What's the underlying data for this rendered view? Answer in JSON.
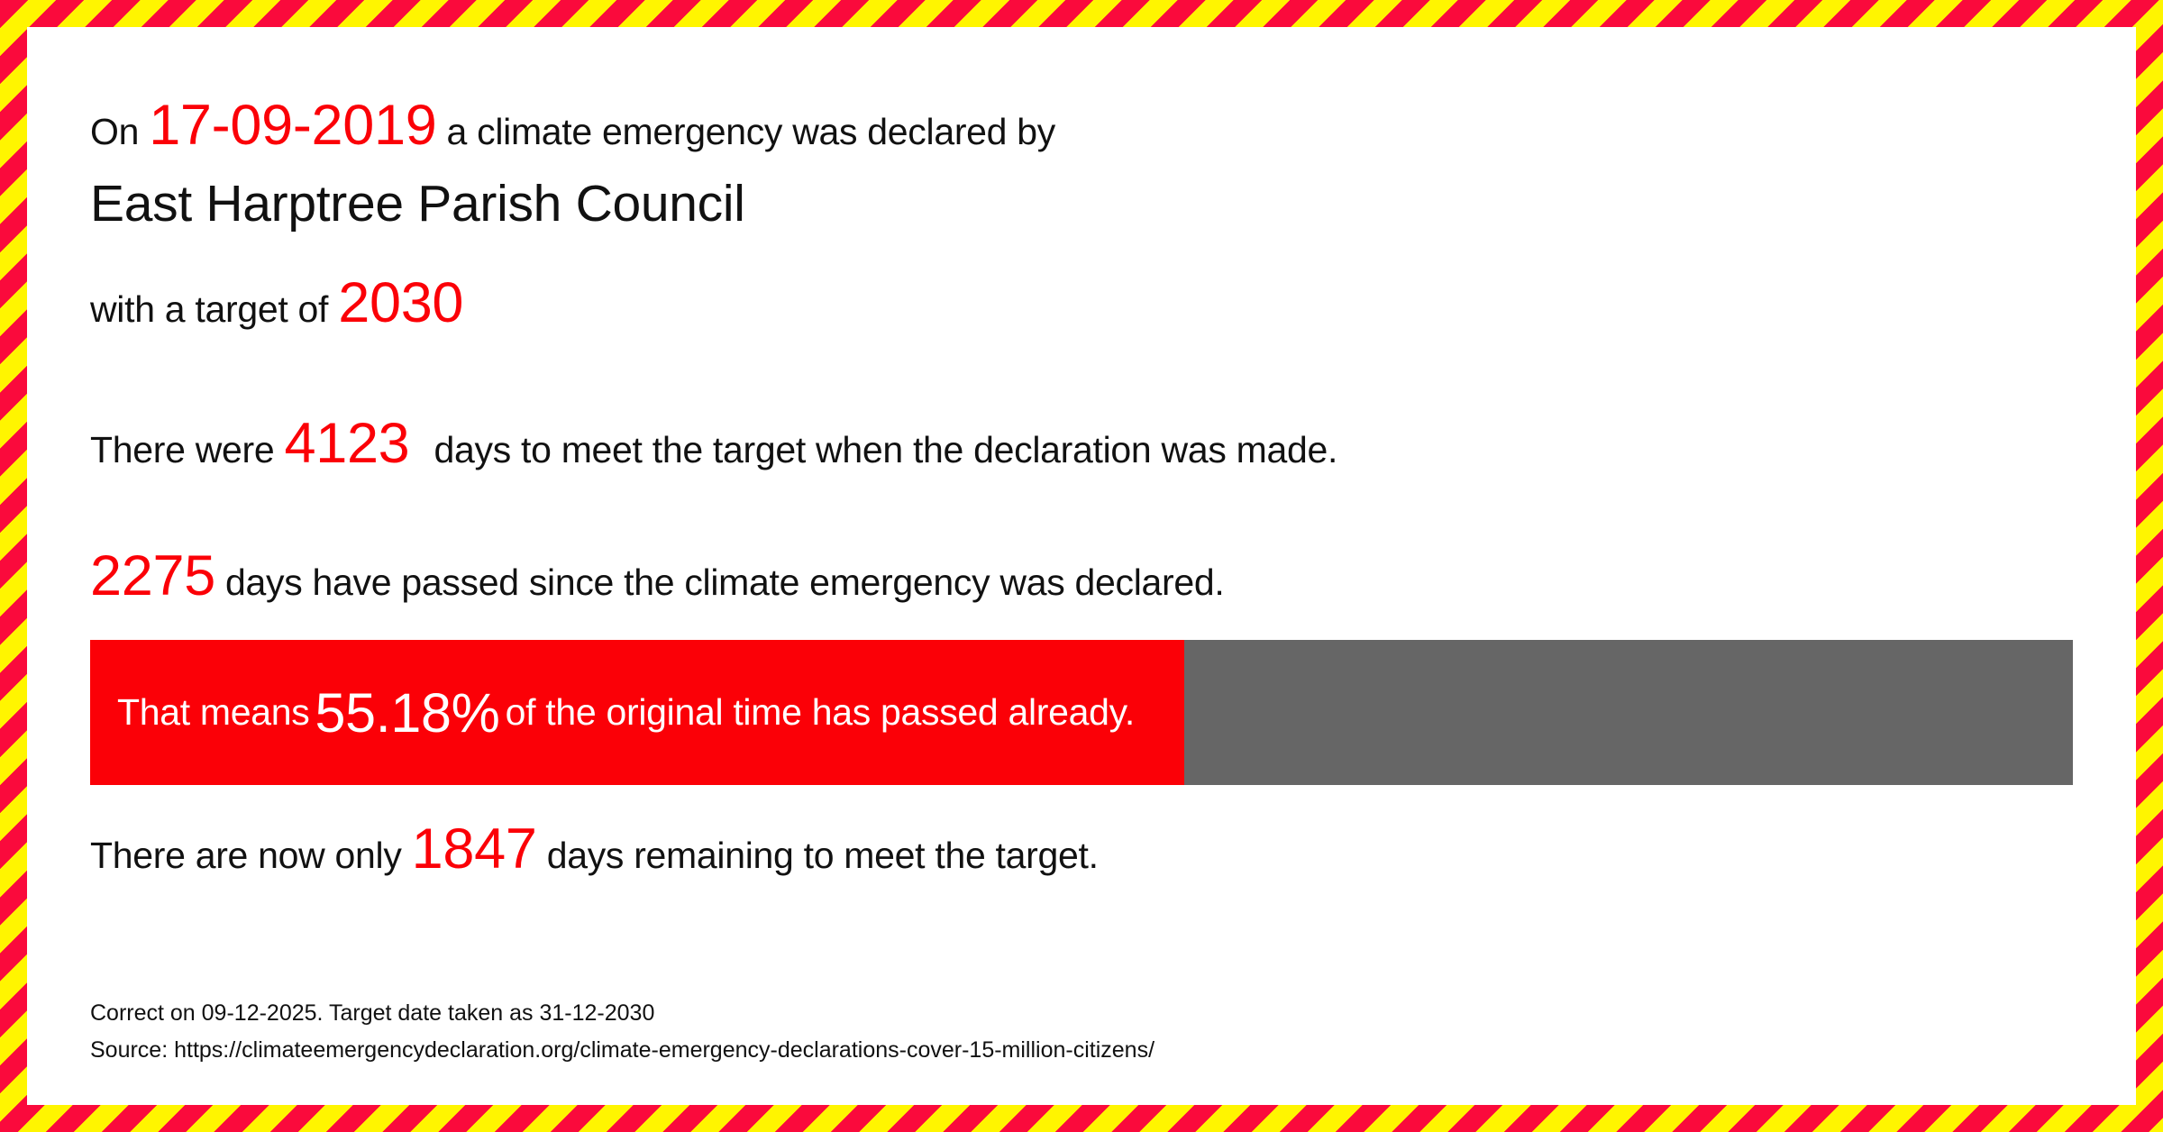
{
  "colors": {
    "stripe_red": "#fa0a3c",
    "stripe_yellow": "#fff500",
    "accent_red": "#fb0007",
    "bar_track_gray": "#666666",
    "bar_fill_red": "#fb0007",
    "text_black": "#111111",
    "bar_text_white": "#ffffff"
  },
  "declaration": {
    "prefix": "On ",
    "date": "17-09-2019",
    "suffix": " a climate emergency was declared by",
    "council": "East Harptree Parish Council",
    "target_prefix": "with a target of ",
    "target_year": "2030"
  },
  "stats": {
    "days_total_prefix": "There were ",
    "days_total": "4123",
    "days_total_suffix": " days to meet the target when the declaration was made.",
    "days_passed": "2275",
    "days_passed_suffix": " days have passed since the climate emergency was declared.",
    "percent_prefix": "That means ",
    "percent": "55.18%",
    "percent_value": 55.18,
    "percent_suffix": " of the original time has passed already.",
    "days_remaining_prefix": "There are now only ",
    "days_remaining": "1847",
    "days_remaining_suffix": " days remaining to meet the target."
  },
  "footer": {
    "line1": "Correct on 09-12-2025. Target date taken as 31-12-2030",
    "line2": "Source: https://climateemergencydeclaration.org/climate-emergency-declarations-cover-15-million-citizens/"
  }
}
